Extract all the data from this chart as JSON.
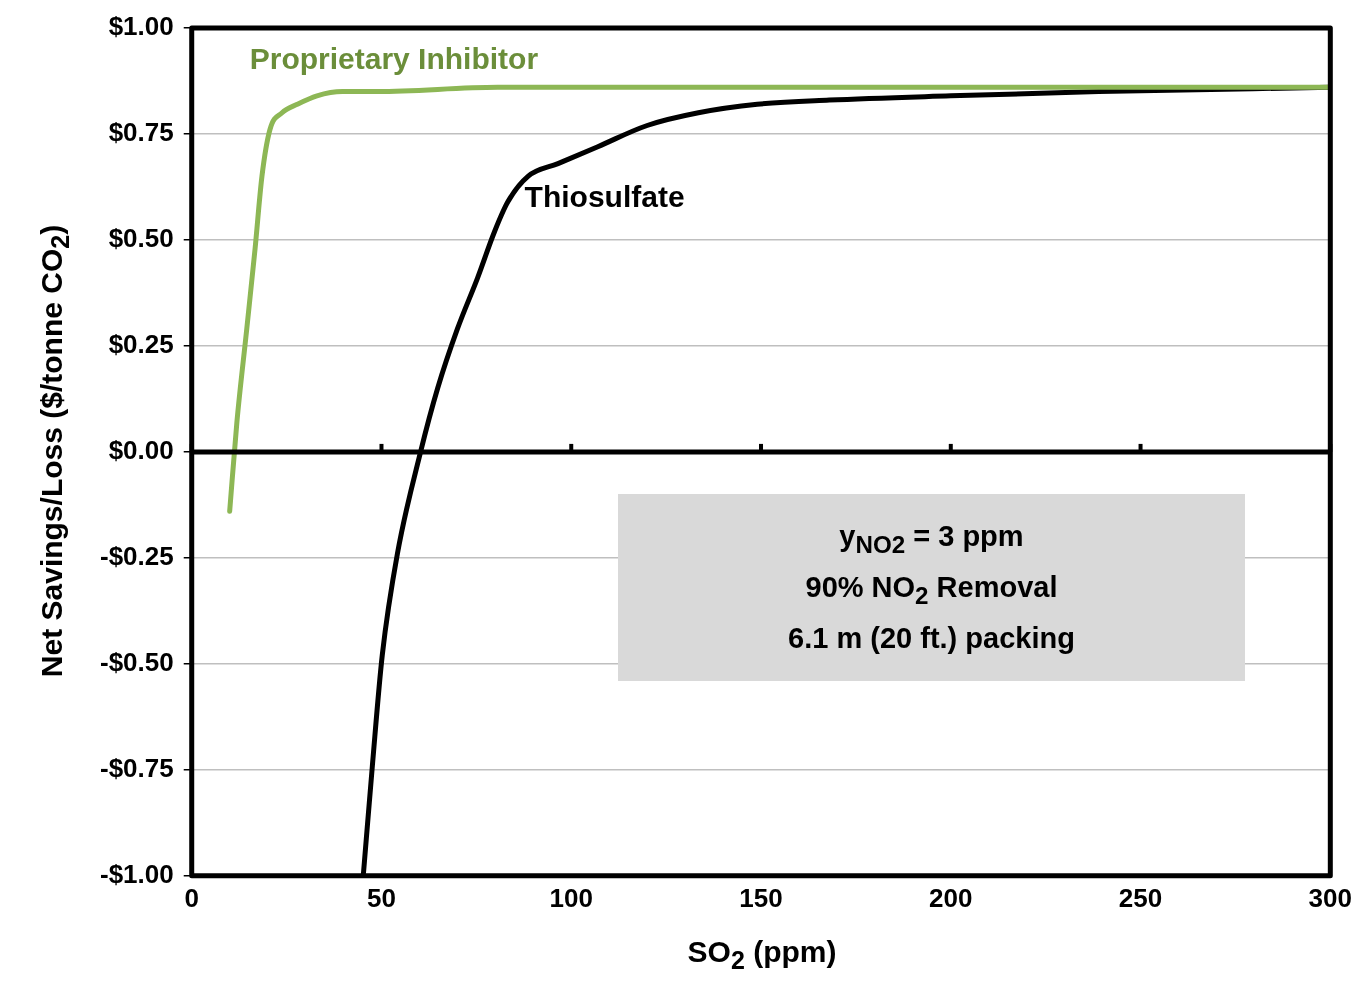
{
  "chart_data": {
    "type": "line",
    "xlabel": "SO$_{2}$ (ppm)",
    "ylabel": "Net Savings/Loss ($/tonne CO$_{2}$)",
    "xlim": [
      0,
      300
    ],
    "xticks": [
      0,
      50,
      100,
      150,
      200,
      250,
      300
    ],
    "ylim": [
      -1,
      1
    ],
    "yticks": [
      {
        "value": -1,
        "label": "-$1.00"
      },
      {
        "value": -0.75,
        "label": "-$0.75"
      },
      {
        "value": -0.5,
        "label": "-$0.50"
      },
      {
        "value": -0.25,
        "label": "-$0.25"
      },
      {
        "value": 0,
        "label": "$0.00"
      },
      {
        "value": 0.25,
        "label": "$0.25"
      },
      {
        "value": 0.5,
        "label": "$0.50"
      },
      {
        "value": 0.75,
        "label": "$0.75"
      },
      {
        "value": 1,
        "label": "$1.00"
      }
    ],
    "grid": "y",
    "legend": false,
    "marker": "none",
    "line_style": "solid",
    "series": [
      {
        "name": "Proprietary Inhibitor",
        "color": "#8db755",
        "x": [
          10,
          11.9,
          14.5,
          16.7,
          18.5,
          20.6,
          23.8,
          27.8,
          33,
          39.7,
          49,
          80.6,
          160,
          300
        ],
        "values": [
          -0.14,
          0.07,
          0.29,
          0.48,
          0.65,
          0.76,
          0.8,
          0.82,
          0.84,
          0.85,
          0.85,
          0.86,
          0.86,
          0.86
        ]
      },
      {
        "name": "Thiosulfate",
        "color": "#000000",
        "x": [
          45.2,
          47.6,
          50.2,
          54.2,
          60.3,
          64.8,
          70,
          75.3,
          79.8,
          83.3,
          88.6,
          96.5,
          107,
          120,
          133.5,
          149,
          168,
          200,
          239,
          300
        ],
        "values": [
          -1,
          -0.74,
          -0.48,
          -0.24,
          0,
          0.15,
          0.29,
          0.41,
          0.52,
          0.59,
          0.65,
          0.68,
          0.72,
          0.77,
          0.8,
          0.82,
          0.83,
          0.84,
          0.85,
          0.86
        ]
      }
    ],
    "annotations": [
      "y$_{NO2}$ = 3 ppm",
      "90% NO$_{2}$ Removal",
      "6.1 m (20 ft.) packing"
    ]
  }
}
